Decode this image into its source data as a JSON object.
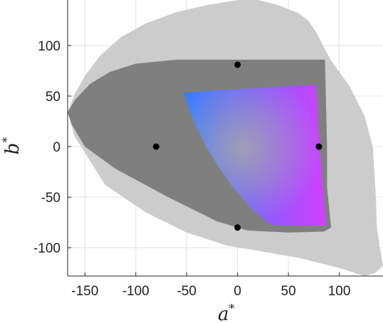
{
  "chart_data": {
    "type": "scatter",
    "title": "",
    "xlabel": "a",
    "ylabel": "b",
    "label_superscript": "*",
    "xlim": [
      -167,
      143
    ],
    "ylim": [
      -128,
      145
    ],
    "xticks": [
      -150,
      -100,
      -50,
      0,
      50,
      100
    ],
    "yticks": [
      -100,
      -50,
      0,
      50,
      100
    ],
    "grid": true,
    "points": [
      {
        "x": 0,
        "y": 81
      },
      {
        "x": -80,
        "y": 0
      },
      {
        "x": 80,
        "y": 0
      },
      {
        "x": 0,
        "y": -80
      }
    ],
    "regions": [
      {
        "name": "",
        "color": "#cccccc",
        "outline": [
          [
            -167,
            34
          ],
          [
            -160,
            52
          ],
          [
            -150,
            70
          ],
          [
            -135,
            90
          ],
          [
            -115,
            108
          ],
          [
            -90,
            122
          ],
          [
            -60,
            133
          ],
          [
            -30,
            140
          ],
          [
            0,
            145
          ],
          [
            20,
            145
          ],
          [
            40,
            140
          ],
          [
            60,
            132
          ],
          [
            70,
            124
          ],
          [
            78,
            112
          ],
          [
            84,
            100
          ],
          [
            92,
            85
          ],
          [
            110,
            60
          ],
          [
            125,
            30
          ],
          [
            133,
            0
          ],
          [
            136,
            -50
          ],
          [
            137,
            -80
          ],
          [
            140,
            -100
          ],
          [
            143,
            -118
          ],
          [
            135,
            -125
          ],
          [
            125,
            -128
          ],
          [
            100,
            -120
          ],
          [
            60,
            -110
          ],
          [
            20,
            -103
          ],
          [
            -10,
            -98
          ],
          [
            -50,
            -85
          ],
          [
            -90,
            -65
          ],
          [
            -130,
            -38
          ],
          [
            -160,
            10
          ],
          [
            -167,
            34
          ]
        ]
      },
      {
        "name": "",
        "color": "#7f7f7f",
        "outline": [
          [
            -167,
            34
          ],
          [
            -160,
            46
          ],
          [
            -145,
            62
          ],
          [
            -125,
            74
          ],
          [
            -100,
            82
          ],
          [
            -60,
            86
          ],
          [
            0,
            86
          ],
          [
            50,
            86
          ],
          [
            86,
            86
          ],
          [
            87,
            40
          ],
          [
            88,
            0
          ],
          [
            88,
            -40
          ],
          [
            92,
            -80
          ],
          [
            85,
            -84
          ],
          [
            50,
            -85
          ],
          [
            10,
            -83
          ],
          [
            -20,
            -74
          ],
          [
            -70,
            -49
          ],
          [
            -120,
            -22
          ],
          [
            -150,
            0
          ],
          [
            -163,
            22
          ],
          [
            -167,
            34
          ]
        ]
      },
      {
        "name": "",
        "color": "gradient",
        "outline": [
          [
            -53,
            53
          ],
          [
            -20,
            56
          ],
          [
            20,
            58
          ],
          [
            50,
            60
          ],
          [
            77,
            61
          ],
          [
            79,
            20
          ],
          [
            82,
            -20
          ],
          [
            85,
            -55
          ],
          [
            87,
            -78
          ],
          [
            60,
            -78
          ],
          [
            32,
            -77
          ],
          [
            15,
            -63
          ],
          [
            -5,
            -40
          ],
          [
            -20,
            -18
          ],
          [
            -32,
            2
          ],
          [
            -42,
            22
          ],
          [
            -49,
            40
          ],
          [
            -53,
            53
          ]
        ],
        "corner_colors": {
          "top_left": "#2e8b1e",
          "top_right": "#ff2020",
          "bottom_left": "#3080ff",
          "bottom_right": "#d040ff"
        }
      }
    ]
  }
}
